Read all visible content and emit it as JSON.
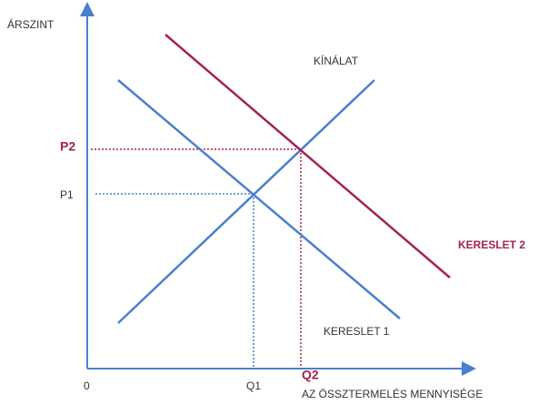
{
  "y_axis_label": "ÁRSZINT",
  "x_axis_label": "AZ ÖSSZTERMELÉS MENNYISÉGE",
  "origin": "0",
  "curves": {
    "supply": "KÍNÁLAT",
    "demand_1": "KERESLET 1",
    "demand_2": "KERESLET 2"
  },
  "price_labels": [
    "P1",
    "P2"
  ],
  "quantity_labels": [
    "Q1",
    "Q2"
  ]
}
